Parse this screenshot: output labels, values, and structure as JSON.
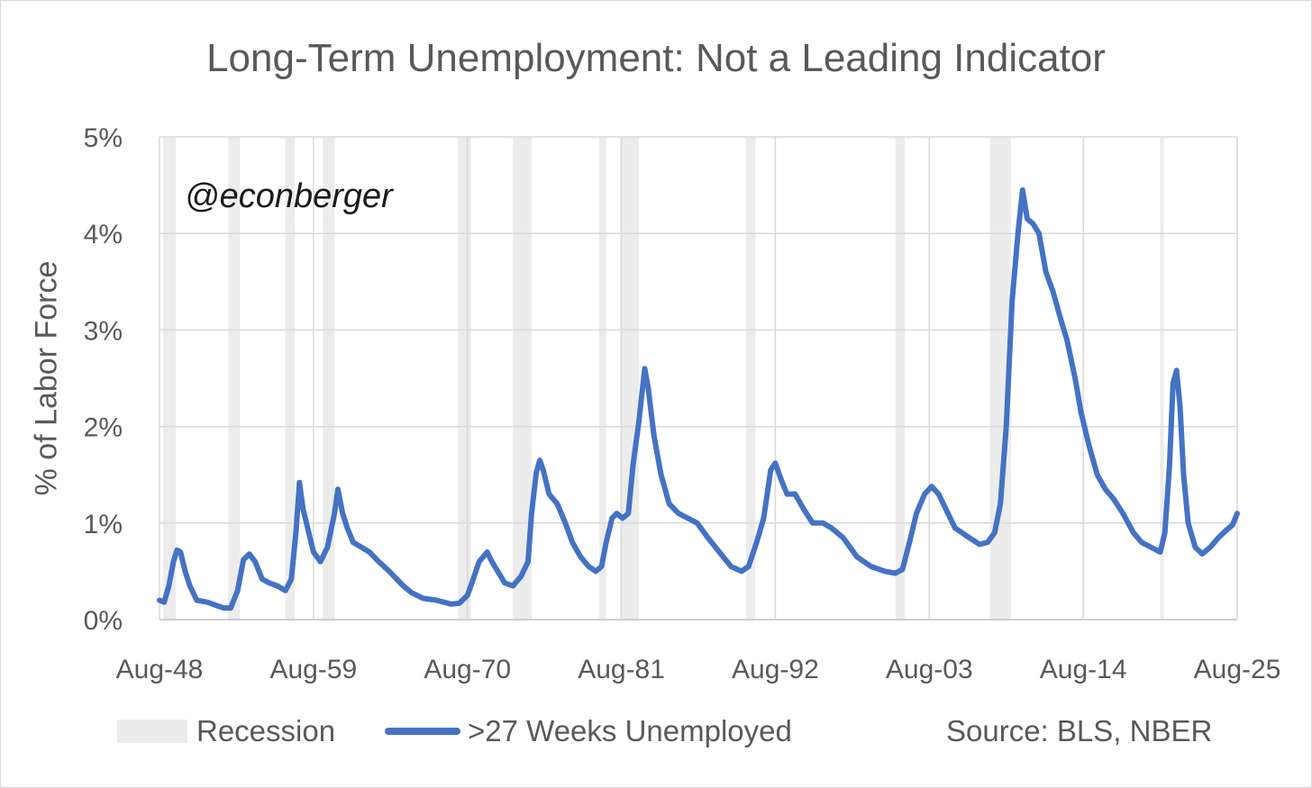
{
  "chart_data": {
    "type": "line",
    "title": "Long-Term Unemployment: Not a Leading Indicator",
    "ylabel": "% of Labor Force",
    "xlabel": "",
    "ylim": [
      0,
      5
    ],
    "xlim": [
      "1948-08",
      "2025-08"
    ],
    "y_ticks": [
      "0%",
      "1%",
      "2%",
      "3%",
      "4%",
      "5%"
    ],
    "x_ticks": [
      "Aug-48",
      "Aug-59",
      "Aug-70",
      "Aug-81",
      "Aug-92",
      "Aug-03",
      "Aug-14",
      "Aug-25"
    ],
    "grid": true,
    "legend": "bottom",
    "annotation": "@econberger",
    "source": "Source: BLS, NBER",
    "recession": {
      "name": "Recession",
      "color": "#ececec",
      "periods": [
        [
          "1948-11",
          "1949-10"
        ],
        [
          "1953-07",
          "1954-05"
        ],
        [
          "1957-08",
          "1958-04"
        ],
        [
          "1960-04",
          "1961-02"
        ],
        [
          "1969-12",
          "1970-11"
        ],
        [
          "1973-11",
          "1975-03"
        ],
        [
          "1980-01",
          "1980-07"
        ],
        [
          "1981-07",
          "1982-11"
        ],
        [
          "1990-07",
          "1991-03"
        ],
        [
          "2001-03",
          "2001-11"
        ],
        [
          "2007-12",
          "2009-06"
        ],
        [
          "2020-02",
          "2020-04"
        ]
      ]
    },
    "series": [
      {
        "name": ">27 Weeks Unemployed",
        "color": "#4472c4",
        "points": [
          [
            "1948-08",
            0.2
          ],
          [
            "1948-12",
            0.18
          ],
          [
            "1949-04",
            0.35
          ],
          [
            "1949-08",
            0.6
          ],
          [
            "1949-11",
            0.72
          ],
          [
            "1950-02",
            0.7
          ],
          [
            "1950-06",
            0.5
          ],
          [
            "1950-10",
            0.35
          ],
          [
            "1951-04",
            0.2
          ],
          [
            "1952-01",
            0.18
          ],
          [
            "1952-08",
            0.15
          ],
          [
            "1953-03",
            0.12
          ],
          [
            "1953-09",
            0.12
          ],
          [
            "1954-03",
            0.3
          ],
          [
            "1954-08",
            0.62
          ],
          [
            "1955-01",
            0.68
          ],
          [
            "1955-06",
            0.6
          ],
          [
            "1955-12",
            0.42
          ],
          [
            "1956-06",
            0.38
          ],
          [
            "1957-01",
            0.35
          ],
          [
            "1957-08",
            0.3
          ],
          [
            "1958-01",
            0.42
          ],
          [
            "1958-05",
            0.9
          ],
          [
            "1958-08",
            1.42
          ],
          [
            "1958-11",
            1.15
          ],
          [
            "1959-03",
            0.95
          ],
          [
            "1959-08",
            0.7
          ],
          [
            "1960-02",
            0.6
          ],
          [
            "1960-08",
            0.75
          ],
          [
            "1961-02",
            1.1
          ],
          [
            "1961-05",
            1.35
          ],
          [
            "1961-09",
            1.1
          ],
          [
            "1962-01",
            0.95
          ],
          [
            "1962-06",
            0.8
          ],
          [
            "1963-01",
            0.75
          ],
          [
            "1963-08",
            0.7
          ],
          [
            "1964-04",
            0.6
          ],
          [
            "1965-01",
            0.5
          ],
          [
            "1966-01",
            0.35
          ],
          [
            "1966-08",
            0.28
          ],
          [
            "1967-06",
            0.22
          ],
          [
            "1968-06",
            0.2
          ],
          [
            "1969-06",
            0.16
          ],
          [
            "1970-01",
            0.17
          ],
          [
            "1970-08",
            0.25
          ],
          [
            "1971-01",
            0.42
          ],
          [
            "1971-06",
            0.6
          ],
          [
            "1972-01",
            0.7
          ],
          [
            "1972-05",
            0.6
          ],
          [
            "1972-10",
            0.5
          ],
          [
            "1973-04",
            0.38
          ],
          [
            "1973-11",
            0.35
          ],
          [
            "1974-06",
            0.45
          ],
          [
            "1974-12",
            0.6
          ],
          [
            "1975-03",
            1.1
          ],
          [
            "1975-07",
            1.52
          ],
          [
            "1975-10",
            1.65
          ],
          [
            "1976-01",
            1.55
          ],
          [
            "1976-06",
            1.3
          ],
          [
            "1977-01",
            1.2
          ],
          [
            "1977-08",
            1.0
          ],
          [
            "1978-02",
            0.8
          ],
          [
            "1978-09",
            0.65
          ],
          [
            "1979-04",
            0.55
          ],
          [
            "1979-10",
            0.5
          ],
          [
            "1980-03",
            0.55
          ],
          [
            "1980-07",
            0.8
          ],
          [
            "1980-12",
            1.05
          ],
          [
            "1981-04",
            1.1
          ],
          [
            "1981-09",
            1.05
          ],
          [
            "1982-02",
            1.1
          ],
          [
            "1982-06",
            1.6
          ],
          [
            "1982-11",
            2.05
          ],
          [
            "1983-04",
            2.6
          ],
          [
            "1983-07",
            2.4
          ],
          [
            "1983-12",
            1.9
          ],
          [
            "1984-06",
            1.5
          ],
          [
            "1985-01",
            1.2
          ],
          [
            "1985-09",
            1.1
          ],
          [
            "1986-05",
            1.05
          ],
          [
            "1987-01",
            1.0
          ],
          [
            "1987-10",
            0.85
          ],
          [
            "1988-08",
            0.7
          ],
          [
            "1989-06",
            0.55
          ],
          [
            "1990-03",
            0.5
          ],
          [
            "1990-09",
            0.55
          ],
          [
            "1991-04",
            0.8
          ],
          [
            "1991-10",
            1.05
          ],
          [
            "1992-04",
            1.55
          ],
          [
            "1992-08",
            1.62
          ],
          [
            "1993-01",
            1.45
          ],
          [
            "1993-06",
            1.3
          ],
          [
            "1994-01",
            1.3
          ],
          [
            "1994-08",
            1.15
          ],
          [
            "1995-04",
            1.0
          ],
          [
            "1996-01",
            1.0
          ],
          [
            "1996-08",
            0.95
          ],
          [
            "1997-06",
            0.85
          ],
          [
            "1998-06",
            0.65
          ],
          [
            "1999-06",
            0.55
          ],
          [
            "2000-06",
            0.5
          ],
          [
            "2001-03",
            0.48
          ],
          [
            "2001-09",
            0.52
          ],
          [
            "2002-03",
            0.8
          ],
          [
            "2002-09",
            1.1
          ],
          [
            "2003-04",
            1.3
          ],
          [
            "2003-10",
            1.38
          ],
          [
            "2004-04",
            1.3
          ],
          [
            "2004-10",
            1.15
          ],
          [
            "2005-06",
            0.95
          ],
          [
            "2006-06",
            0.85
          ],
          [
            "2007-03",
            0.78
          ],
          [
            "2007-10",
            0.8
          ],
          [
            "2008-04",
            0.9
          ],
          [
            "2008-09",
            1.2
          ],
          [
            "2009-02",
            2.0
          ],
          [
            "2009-07",
            3.3
          ],
          [
            "2009-12",
            4.0
          ],
          [
            "2010-04",
            4.45
          ],
          [
            "2010-08",
            4.15
          ],
          [
            "2011-01",
            4.1
          ],
          [
            "2011-06",
            4.0
          ],
          [
            "2011-12",
            3.6
          ],
          [
            "2012-06",
            3.4
          ],
          [
            "2013-01",
            3.1
          ],
          [
            "2013-06",
            2.9
          ],
          [
            "2014-01",
            2.5
          ],
          [
            "2014-06",
            2.15
          ],
          [
            "2015-01",
            1.8
          ],
          [
            "2015-08",
            1.5
          ],
          [
            "2016-03",
            1.35
          ],
          [
            "2016-10",
            1.25
          ],
          [
            "2017-06",
            1.1
          ],
          [
            "2018-03",
            0.9
          ],
          [
            "2018-10",
            0.8
          ],
          [
            "2019-06",
            0.75
          ],
          [
            "2020-02",
            0.7
          ],
          [
            "2020-06",
            0.9
          ],
          [
            "2020-10",
            1.6
          ],
          [
            "2021-01",
            2.45
          ],
          [
            "2021-04",
            2.58
          ],
          [
            "2021-07",
            2.2
          ],
          [
            "2021-10",
            1.5
          ],
          [
            "2022-02",
            1.0
          ],
          [
            "2022-08",
            0.75
          ],
          [
            "2023-02",
            0.68
          ],
          [
            "2023-09",
            0.75
          ],
          [
            "2024-04",
            0.85
          ],
          [
            "2024-10",
            0.92
          ],
          [
            "2025-04",
            0.98
          ],
          [
            "2025-08",
            1.1
          ]
        ]
      }
    ]
  }
}
